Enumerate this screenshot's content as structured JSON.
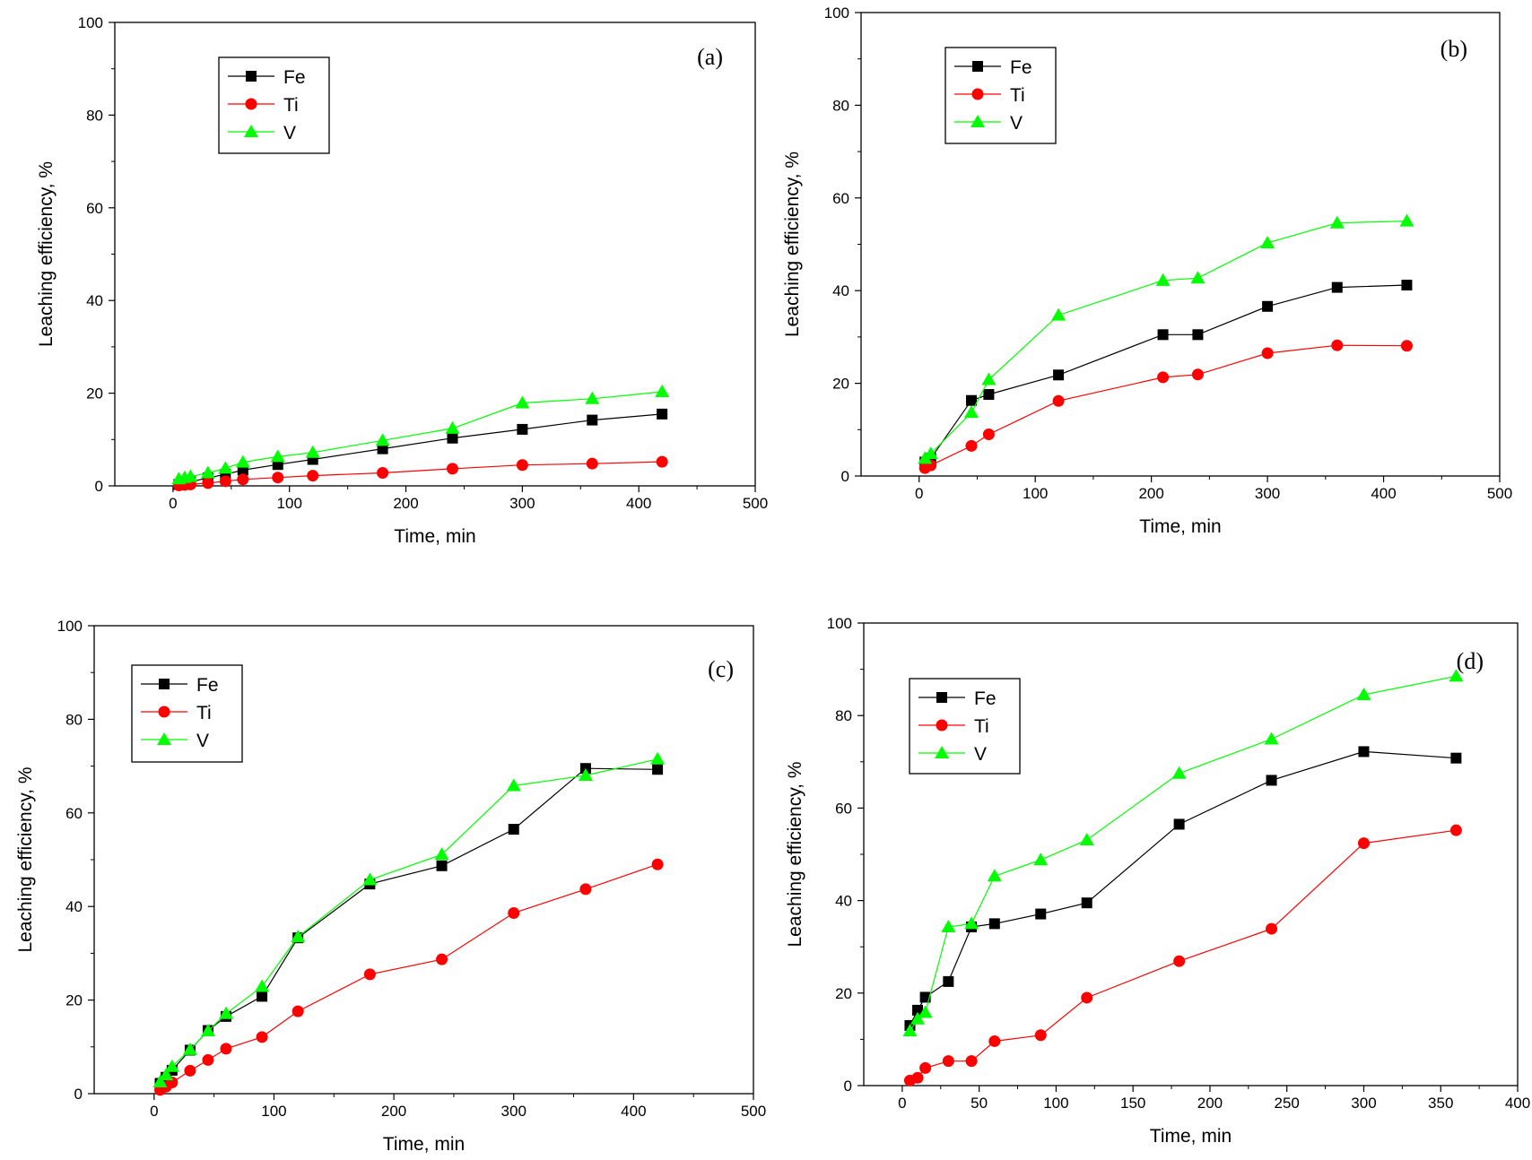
{
  "chart_data": [
    {
      "type": "line",
      "panel_label": "(a)",
      "xlabel": "Time, min",
      "ylabel": "Leaching efficiency, %",
      "xlim": [
        -50,
        500
      ],
      "ylim": [
        0,
        100
      ],
      "x_ticks": [
        0,
        100,
        200,
        300,
        400,
        500
      ],
      "y_ticks": [
        0,
        20,
        40,
        60,
        80,
        100
      ],
      "grid": false,
      "legend_position": "top-left",
      "series": [
        {
          "name": "Fe",
          "marker": "square",
          "color": "#000000",
          "x": [
            5,
            10,
            15,
            30,
            45,
            60,
            90,
            120,
            180,
            240,
            300,
            360,
            420
          ],
          "y": [
            0.3,
            0.6,
            0.9,
            1.7,
            2.5,
            3.4,
            4.6,
            5.7,
            8.0,
            10.3,
            12.2,
            14.2,
            15.5
          ]
        },
        {
          "name": "Ti",
          "marker": "circle",
          "color": "#ff0000",
          "x": [
            5,
            10,
            15,
            30,
            45,
            60,
            90,
            120,
            180,
            240,
            300,
            360,
            420
          ],
          "y": [
            0.1,
            0.2,
            0.3,
            0.6,
            1.0,
            1.4,
            1.8,
            2.2,
            2.8,
            3.7,
            4.5,
            4.8,
            5.2
          ]
        },
        {
          "name": "V",
          "marker": "triangle",
          "color": "#00ff00",
          "x": [
            5,
            10,
            15,
            30,
            45,
            60,
            90,
            120,
            180,
            240,
            300,
            360,
            420
          ],
          "y": [
            1.5,
            1.8,
            2.0,
            2.8,
            3.8,
            5.1,
            6.3,
            7.2,
            9.8,
            12.4,
            17.9,
            18.8,
            20.3
          ]
        }
      ]
    },
    {
      "type": "line",
      "panel_label": "(b)",
      "xlabel": "Time, min",
      "ylabel": "Leaching efficiency, %",
      "xlim": [
        -50,
        500
      ],
      "ylim": [
        0,
        100
      ],
      "x_ticks": [
        0,
        100,
        200,
        300,
        400,
        500
      ],
      "y_ticks": [
        0,
        20,
        40,
        60,
        80,
        100
      ],
      "grid": false,
      "legend_position": "top-left",
      "series": [
        {
          "name": "Fe",
          "marker": "square",
          "color": "#000000",
          "x": [
            5,
            10,
            45,
            60,
            120,
            210,
            240,
            300,
            360,
            420
          ],
          "y": [
            3.0,
            3.8,
            16.3,
            17.6,
            21.8,
            30.5,
            30.5,
            36.6,
            40.7,
            41.2
          ]
        },
        {
          "name": "Ti",
          "marker": "circle",
          "color": "#ff0000",
          "x": [
            5,
            10,
            45,
            60,
            120,
            210,
            240,
            300,
            360,
            420
          ],
          "y": [
            1.7,
            2.3,
            6.5,
            9.0,
            16.2,
            21.3,
            21.9,
            26.5,
            28.2,
            28.1
          ]
        },
        {
          "name": "V",
          "marker": "triangle",
          "color": "#00ff00",
          "x": [
            5,
            10,
            45,
            60,
            120,
            210,
            240,
            300,
            360,
            420
          ],
          "y": [
            3.8,
            4.8,
            13.7,
            20.8,
            34.7,
            42.2,
            42.7,
            50.3,
            54.6,
            55.0
          ]
        }
      ]
    },
    {
      "type": "line",
      "panel_label": "(c)",
      "xlabel": "Time, min",
      "ylabel": "Leaching efficiency, %",
      "xlim": [
        -50,
        500
      ],
      "ylim": [
        0,
        100
      ],
      "x_ticks": [
        0,
        100,
        200,
        300,
        400,
        500
      ],
      "y_ticks": [
        0,
        20,
        40,
        60,
        80,
        100
      ],
      "grid": false,
      "legend_position": "top-left",
      "series": [
        {
          "name": "Fe",
          "marker": "square",
          "color": "#000000",
          "x": [
            5,
            10,
            15,
            30,
            45,
            60,
            90,
            120,
            180,
            240,
            300,
            360,
            420
          ],
          "y": [
            2.2,
            3.5,
            5.0,
            9.3,
            13.5,
            16.5,
            20.8,
            33.3,
            44.8,
            48.7,
            56.5,
            69.5,
            69.3
          ]
        },
        {
          "name": "Ti",
          "marker": "circle",
          "color": "#ff0000",
          "x": [
            5,
            10,
            15,
            30,
            45,
            60,
            90,
            120,
            180,
            240,
            300,
            360,
            420
          ],
          "y": [
            0.8,
            1.5,
            2.4,
            4.9,
            7.2,
            9.6,
            12.1,
            17.6,
            25.5,
            28.7,
            38.6,
            43.7,
            49.0
          ]
        },
        {
          "name": "V",
          "marker": "triangle",
          "color": "#00ff00",
          "x": [
            5,
            10,
            15,
            30,
            45,
            60,
            90,
            120,
            180,
            240,
            300,
            360,
            420
          ],
          "y": [
            2.5,
            4.0,
            5.8,
            9.4,
            13.4,
            17.1,
            22.9,
            33.5,
            45.7,
            51.1,
            65.8,
            68.0,
            71.5
          ]
        }
      ]
    },
    {
      "type": "line",
      "panel_label": "(d)",
      "xlabel": "Time, min",
      "ylabel": "Leaching efficiency, %",
      "xlim": [
        -25,
        400
      ],
      "ylim": [
        0,
        100
      ],
      "x_ticks": [
        0,
        50,
        100,
        150,
        200,
        250,
        300,
        350,
        400
      ],
      "y_ticks": [
        0,
        20,
        40,
        60,
        80,
        100
      ],
      "grid": false,
      "legend_position": "top-left",
      "series": [
        {
          "name": "Fe",
          "marker": "square",
          "color": "#000000",
          "x": [
            5,
            10,
            15,
            30,
            45,
            60,
            90,
            120,
            180,
            240,
            300,
            360
          ],
          "y": [
            13.0,
            16.3,
            19.1,
            22.5,
            34.3,
            35.0,
            37.1,
            39.5,
            56.5,
            66.0,
            72.2,
            70.8
          ]
        },
        {
          "name": "Ti",
          "marker": "circle",
          "color": "#ff0000",
          "x": [
            5,
            10,
            15,
            30,
            45,
            60,
            90,
            120,
            180,
            240,
            300,
            360
          ],
          "y": [
            1.1,
            1.7,
            3.8,
            5.3,
            5.3,
            9.6,
            10.9,
            19.0,
            26.9,
            33.9,
            52.4,
            55.2
          ]
        },
        {
          "name": "V",
          "marker": "triangle",
          "color": "#00ff00",
          "x": [
            5,
            10,
            15,
            30,
            45,
            60,
            90,
            120,
            180,
            240,
            300,
            360
          ],
          "y": [
            11.8,
            14.4,
            15.8,
            34.3,
            35.0,
            45.3,
            48.8,
            53.1,
            67.5,
            74.9,
            84.5,
            88.5
          ]
        }
      ]
    }
  ]
}
